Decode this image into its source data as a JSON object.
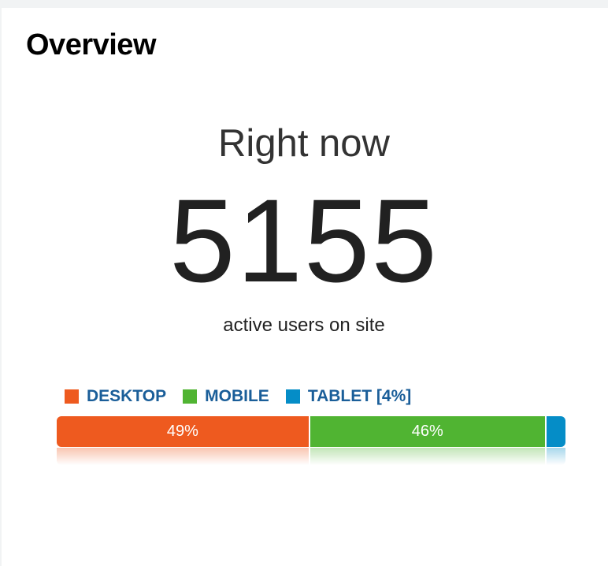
{
  "overview": {
    "title": "Overview"
  },
  "realtime": {
    "heading": "Right now",
    "count": "5155",
    "caption": "active users on site"
  },
  "legend": [
    {
      "label": "DESKTOP",
      "color": "#ee5a1f"
    },
    {
      "label": "MOBILE",
      "color": "#50b432"
    },
    {
      "label": "TABLET [4%]",
      "color": "#058dc7"
    }
  ],
  "chart_data": {
    "type": "bar",
    "orientation": "stacked-horizontal",
    "categories": [
      "DESKTOP",
      "MOBILE",
      "TABLET"
    ],
    "values": [
      49,
      46,
      4
    ],
    "unit": "%",
    "data_labels": [
      "49%",
      "46%",
      ""
    ],
    "colors": [
      "#ee5a1f",
      "#50b432",
      "#058dc7"
    ]
  }
}
